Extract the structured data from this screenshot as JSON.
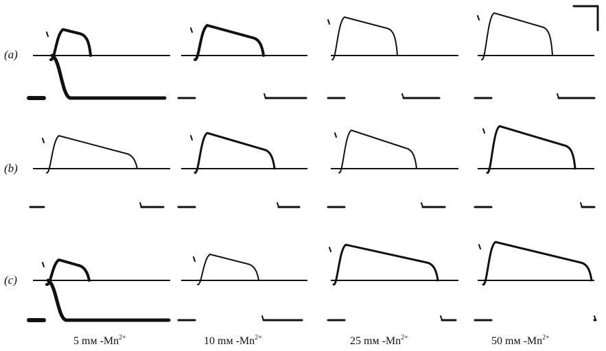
{
  "rows": [
    {
      "label": "(a)"
    },
    {
      "label": "(b)"
    },
    {
      "label": "(c)"
    }
  ],
  "columns": [
    {
      "value": "5",
      "unit": "mм",
      "ion": "Mn",
      "charge": "2+"
    },
    {
      "value": "10",
      "unit": "mм",
      "ion": "Mn",
      "charge": "2+"
    },
    {
      "value": "25",
      "unit": "mм",
      "ion": "Mn",
      "charge": "2+"
    },
    {
      "value": "50",
      "unit": "mм",
      "ion": "Mn",
      "charge": "2+"
    }
  ]
}
